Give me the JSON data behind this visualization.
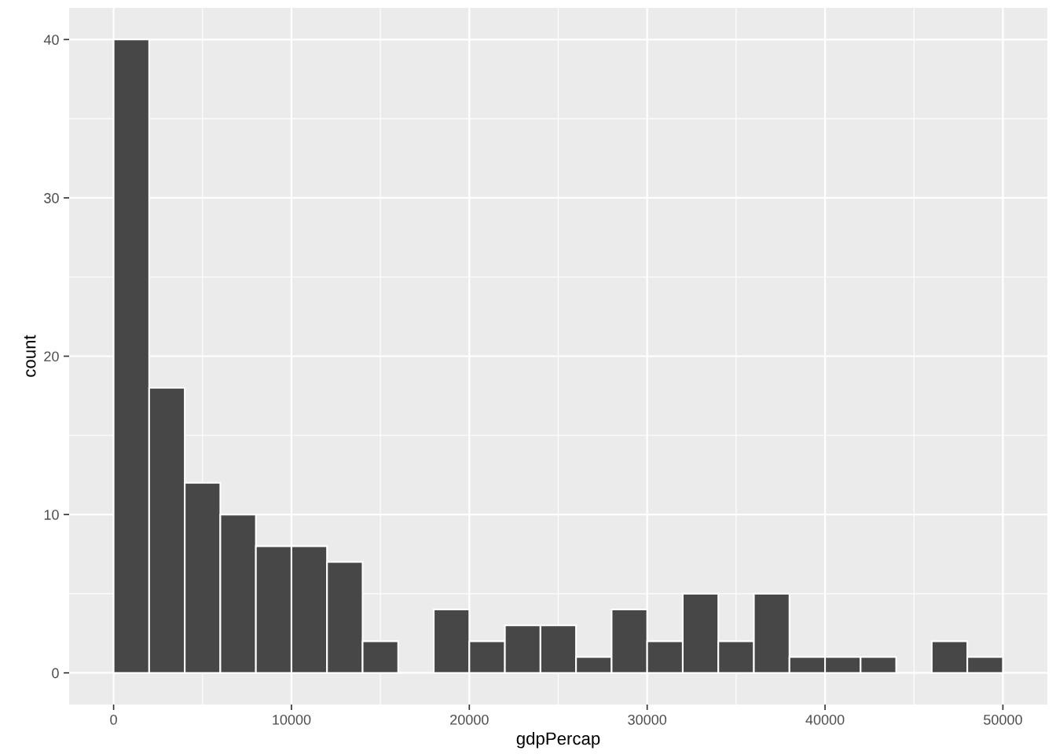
{
  "chart_data": {
    "type": "histogram",
    "xlabel": "gdpPercap",
    "ylabel": "count",
    "bins": [
      0,
      2000,
      4000,
      6000,
      8000,
      10000,
      12000,
      14000,
      16000,
      18000,
      20000,
      22000,
      24000,
      26000,
      28000,
      30000,
      32000,
      34000,
      36000,
      38000,
      40000,
      42000,
      44000,
      46000,
      48000,
      50000
    ],
    "values": [
      40,
      18,
      12,
      10,
      8,
      8,
      7,
      2,
      0,
      4,
      2,
      3,
      3,
      1,
      4,
      2,
      5,
      2,
      5,
      1,
      1,
      1,
      0,
      2,
      1
    ],
    "color": "#474747",
    "xlim": [
      -2500,
      52500
    ],
    "ylim": [
      -2,
      42
    ],
    "xticks": [
      0,
      10000,
      20000,
      30000,
      40000,
      50000
    ],
    "yticks": [
      0,
      10,
      20,
      30,
      40
    ],
    "grid": true
  }
}
